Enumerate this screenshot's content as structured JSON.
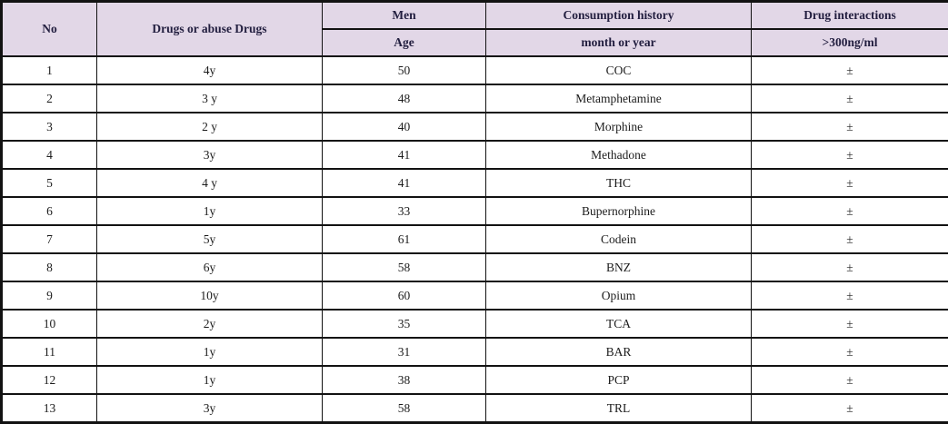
{
  "table": {
    "title": "drug-consumption-table",
    "colors": {
      "header_bg": "#e2d7e7",
      "header_text": "#221e3f",
      "body_text": "#1c1c1c",
      "border": "#121212"
    },
    "header": {
      "col_no": "No",
      "col_drugs": "Drugs or abuse Drugs",
      "col_men_top": "Men",
      "col_men_sub": "Age",
      "col_consumption_top": "Consumption history",
      "col_consumption_sub": "month or year",
      "col_interactions_top": "Drug interactions",
      "col_interactions_sub": ">300ng/ml"
    },
    "rows": [
      {
        "no": "1",
        "duration": "4y",
        "age": "50",
        "drug": "COC",
        "interaction": "±"
      },
      {
        "no": "2",
        "duration": "3 y",
        "age": "48",
        "drug": "Metamphetamine",
        "interaction": "±"
      },
      {
        "no": "3",
        "duration": "2 y",
        "age": "40",
        "drug": "Morphine",
        "interaction": "±"
      },
      {
        "no": "4",
        "duration": "3y",
        "age": "41",
        "drug": "Methadone",
        "interaction": "±"
      },
      {
        "no": "5",
        "duration": "4 y",
        "age": "41",
        "drug": "THC",
        "interaction": "±"
      },
      {
        "no": "6",
        "duration": "1y",
        "age": "33",
        "drug": "Bupernorphine",
        "interaction": "±"
      },
      {
        "no": "7",
        "duration": "5y",
        "age": "61",
        "drug": "Codein",
        "interaction": "±"
      },
      {
        "no": "8",
        "duration": "6y",
        "age": "58",
        "drug": "BNZ",
        "interaction": "±"
      },
      {
        "no": "9",
        "duration": "10y",
        "age": "60",
        "drug": "Opium",
        "interaction": "±"
      },
      {
        "no": "10",
        "duration": "2y",
        "age": "35",
        "drug": "TCA",
        "interaction": "±"
      },
      {
        "no": "11",
        "duration": "1y",
        "age": "31",
        "drug": "BAR",
        "interaction": "±"
      },
      {
        "no": "12",
        "duration": "1y",
        "age": "38",
        "drug": "PCP",
        "interaction": "±"
      },
      {
        "no": "13",
        "duration": "3y",
        "age": "58",
        "drug": "TRL",
        "interaction": "±"
      }
    ]
  }
}
